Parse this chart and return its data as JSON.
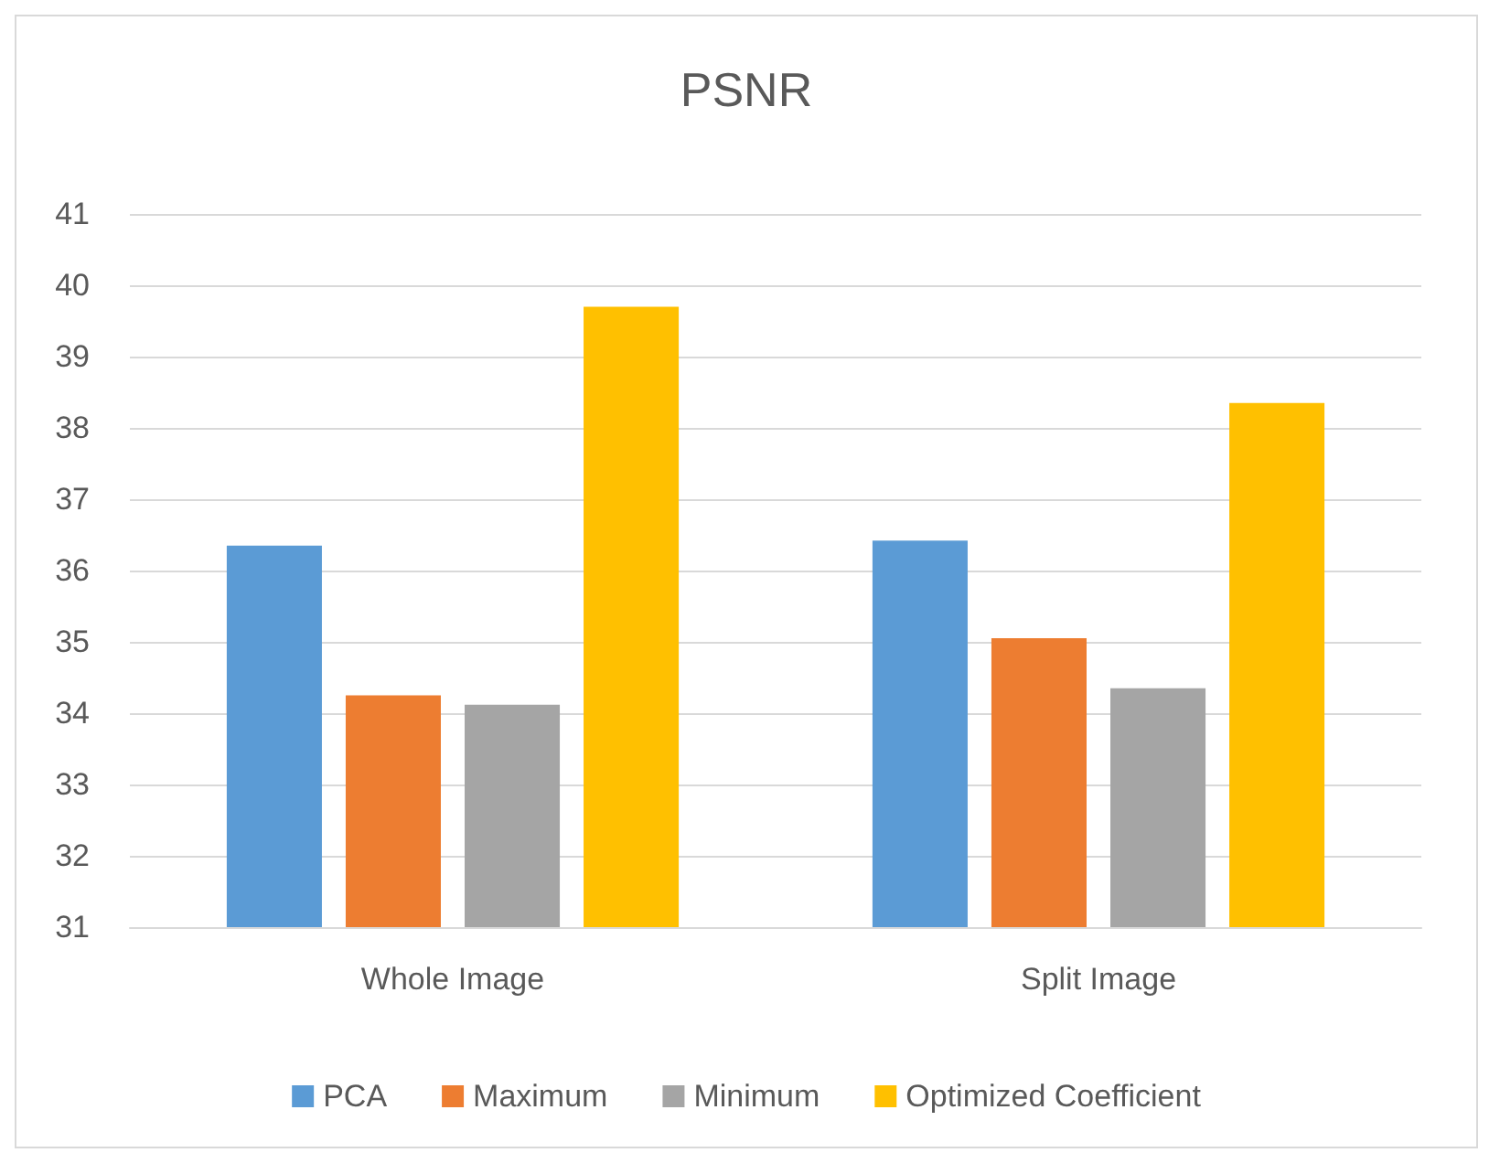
{
  "chart_data": {
    "type": "bar",
    "title": "PSNR",
    "categories": [
      "Whole Image",
      "Split Image"
    ],
    "series": [
      {
        "name": "PCA",
        "color": "#5b9bd5",
        "values": [
          36.35,
          36.42
        ]
      },
      {
        "name": "Maximum",
        "color": "#ed7d31",
        "values": [
          34.25,
          35.05
        ]
      },
      {
        "name": "Minimum",
        "color": "#a5a5a5",
        "values": [
          34.12,
          34.35
        ]
      },
      {
        "name": "Optimized Coefficient",
        "color": "#ffc000",
        "values": [
          39.7,
          38.35
        ]
      }
    ],
    "ylim": [
      31,
      41
    ],
    "yticks": [
      31,
      32,
      33,
      34,
      35,
      36,
      37,
      38,
      39,
      40,
      41
    ],
    "grid": "y",
    "legend": "bottom"
  }
}
